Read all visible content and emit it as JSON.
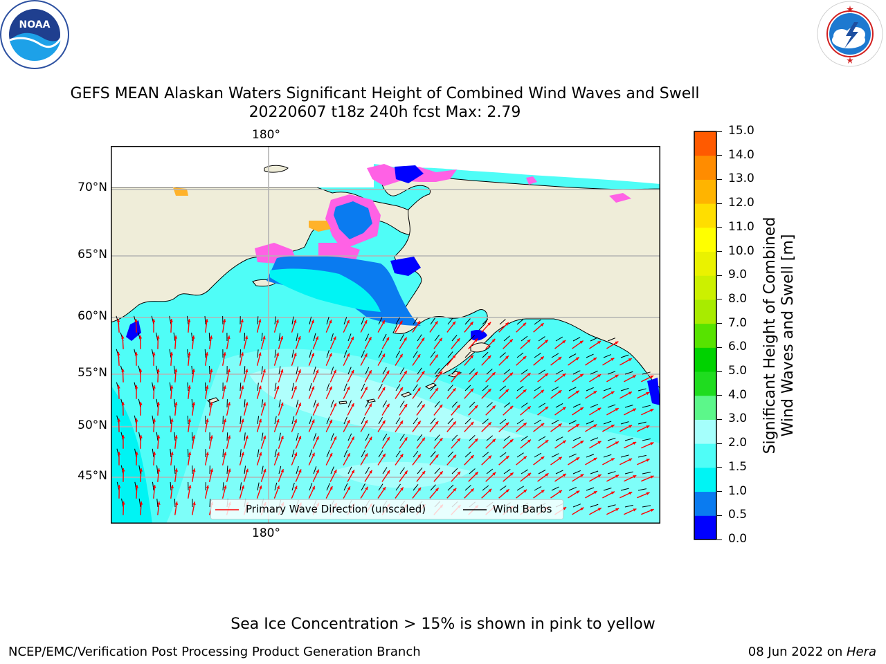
{
  "title": {
    "line1": "GEFS MEAN Alaskan Waters Significant Height of Combined Wind Waves and Swell",
    "line2": "20220607 t18z 240h fcst   Max: 2.79"
  },
  "logos": {
    "noaa": {
      "text": "NOAA",
      "ring_text": "NATIONAL OCEANIC AND ATMOSPHERIC ADMINISTRATION · U.S. DEPARTMENT OF COMMERCE"
    },
    "nws": {
      "ring_text": "NATIONAL WEATHER SERVICE"
    }
  },
  "map": {
    "top_lon_label": "180°",
    "bottom_lon_label": "180°",
    "lat_labels": [
      "70°N",
      "65°N",
      "60°N",
      "55°N",
      "50°N",
      "45°N"
    ],
    "colors": {
      "land": "#efedd9",
      "ocean_mid": "#4ffdf7",
      "ocean_light": "#a5fffc",
      "ocean_mid2": "#00f4f4",
      "ocean_blue": "#0a7bf0",
      "ocean_dark": "#0000ff",
      "ice_pink": "#ff61e5",
      "ice_orange": "#ffb22a",
      "wave_arrow": "#ff0000",
      "barb": "#000000",
      "grid": "#b3b3b3"
    }
  },
  "legend": {
    "wave_label": "Primary Wave Direction (unscaled)",
    "barb_label": "Wind Barbs"
  },
  "colorbar": {
    "label_line1": "Significant Height of Combined",
    "label_line2": "Wind Waves and Swell [m]",
    "ticks": [
      "15.0",
      "14.0",
      "13.0",
      "12.0",
      "11.0",
      "10.0",
      "9.0",
      "8.0",
      "7.0",
      "6.0",
      "5.0",
      "4.0",
      "3.0",
      "2.0",
      "1.5",
      "1.0",
      "0.5",
      "0.0"
    ],
    "bands": [
      "#0000ff",
      "#0a7bf0",
      "#00f4f4",
      "#4ffdf7",
      "#a5fffc",
      "#5cf78a",
      "#1fdc1f",
      "#00d200",
      "#57e300",
      "#a8eb00",
      "#ccf000",
      "#eaf200",
      "#ffff00",
      "#ffde00",
      "#ffb400",
      "#ff8c00",
      "#ff5a00",
      "#ff2d00",
      "#ff0000"
    ]
  },
  "note": "Sea Ice Concentration > 15% is shown in pink to yellow",
  "footer": {
    "left": "NCEP/EMC/Verification Post Processing Product Generation Branch",
    "date": "08 Jun 2022 on ",
    "machine": "Hera"
  }
}
